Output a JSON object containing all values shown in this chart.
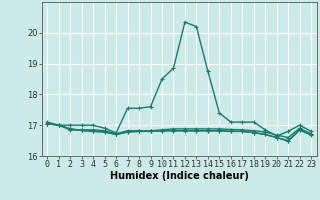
{
  "xlabel": "Humidex (Indice chaleur)",
  "bg_color": "#cceae7",
  "grid_color": "#ffffff",
  "line_color": "#1a7a6e",
  "x_values": [
    0,
    1,
    2,
    3,
    4,
    5,
    6,
    7,
    8,
    9,
    10,
    11,
    12,
    13,
    14,
    15,
    16,
    17,
    18,
    19,
    20,
    21,
    22,
    23
  ],
  "series": [
    [
      17.1,
      17.0,
      17.0,
      17.0,
      17.0,
      16.9,
      16.75,
      17.55,
      17.55,
      17.6,
      18.5,
      18.85,
      20.35,
      20.2,
      18.75,
      17.4,
      17.1,
      17.1,
      17.1,
      16.85,
      16.65,
      16.8,
      17.0,
      16.8
    ],
    [
      17.05,
      17.0,
      16.85,
      16.85,
      16.85,
      16.82,
      16.72,
      16.82,
      16.82,
      16.82,
      16.85,
      16.88,
      16.88,
      16.88,
      16.88,
      16.88,
      16.86,
      16.85,
      16.82,
      16.78,
      16.68,
      16.6,
      16.9,
      16.72
    ],
    [
      17.05,
      17.0,
      16.88,
      16.83,
      16.8,
      16.78,
      16.7,
      16.78,
      16.8,
      16.8,
      16.82,
      16.82,
      16.82,
      16.82,
      16.82,
      16.82,
      16.8,
      16.8,
      16.76,
      16.7,
      16.6,
      16.5,
      16.86,
      16.7
    ],
    [
      17.05,
      17.0,
      16.88,
      16.83,
      16.8,
      16.78,
      16.7,
      16.78,
      16.8,
      16.8,
      16.82,
      16.82,
      16.82,
      16.82,
      16.82,
      16.82,
      16.8,
      16.8,
      16.76,
      16.7,
      16.6,
      16.48,
      16.84,
      16.68
    ]
  ],
  "ylim": [
    16.0,
    21.0
  ],
  "yticks": [
    16,
    17,
    18,
    19,
    20
  ],
  "xlim": [
    -0.5,
    23.5
  ],
  "markersize": 2.5,
  "linewidth": 1.0,
  "xlabel_fontsize": 7,
  "tick_fontsize": 6
}
